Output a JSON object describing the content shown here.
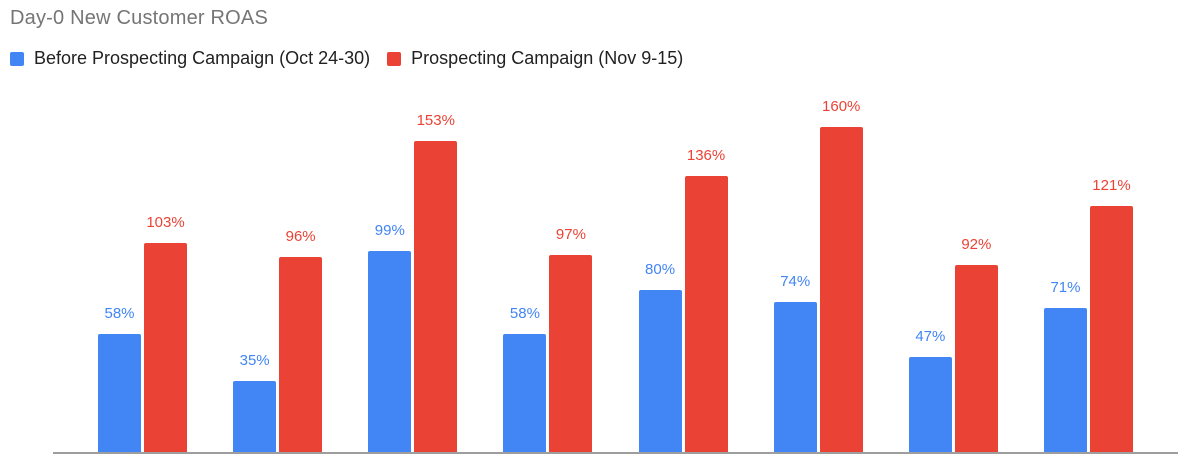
{
  "title": "Day-0 New Customer ROAS",
  "legend": [
    {
      "label": "Before Prospecting Campaign (Oct 24-30)",
      "color": "#4285F4"
    },
    {
      "label": "Prospecting Campaign (Nov 9-15)",
      "color": "#EA4335"
    }
  ],
  "colors": {
    "before_series": "#4285F4",
    "prospecting_series": "#EA4335",
    "title_text": "#757575",
    "legend_text": "#212121",
    "axis_line": "#9e9e9e"
  },
  "chart_data": {
    "type": "bar",
    "title": "Day-0 New Customer ROAS",
    "categories": [
      "",
      "",
      "",
      "",
      "",
      "",
      "",
      ""
    ],
    "series": [
      {
        "name": "Before Prospecting Campaign (Oct 24-30)",
        "color": "#4285F4",
        "values": [
          58,
          35,
          99,
          58,
          80,
          74,
          47,
          71
        ]
      },
      {
        "name": "Prospecting Campaign (Nov 9-15)",
        "color": "#EA4335",
        "values": [
          103,
          96,
          153,
          97,
          136,
          160,
          92,
          121
        ]
      }
    ],
    "value_suffix": "%",
    "data_labels": true,
    "xlabel": "",
    "ylabel": "",
    "ylim": [
      0,
      175
    ],
    "grid": false,
    "y_axis_ticks_visible": false,
    "x_axis_labels_visible": false,
    "legend_position": "top-left"
  }
}
